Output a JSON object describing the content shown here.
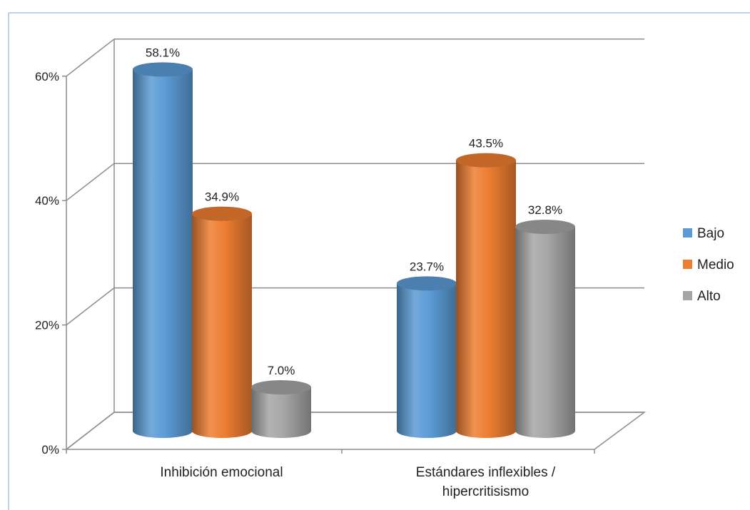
{
  "chart_data": {
    "type": "bar",
    "style": "3d-cylinder",
    "categories": [
      [
        "Inhibición emocional"
      ],
      [
        "Estándares inflexibles /",
        "hipercritisismo"
      ]
    ],
    "series": [
      {
        "name": "Bajo",
        "color": "#5B9BD5",
        "values": [
          58.1,
          23.7
        ],
        "labels": [
          "58.1%",
          "23.7%"
        ]
      },
      {
        "name": "Medio",
        "color": "#ED7D31",
        "values": [
          34.9,
          43.5
        ],
        "labels": [
          "34.9%",
          "43.5%"
        ]
      },
      {
        "name": "Alto",
        "color": "#A5A5A5",
        "values": [
          7.0,
          32.8
        ],
        "labels": [
          "7.0%",
          "32.8%"
        ]
      }
    ],
    "ylim": [
      0,
      60
    ],
    "yticks": [
      0,
      20,
      40,
      60
    ],
    "ytick_labels": [
      "0%",
      "20%",
      "40%",
      "60%"
    ],
    "grid": true,
    "legend_position": "right"
  }
}
